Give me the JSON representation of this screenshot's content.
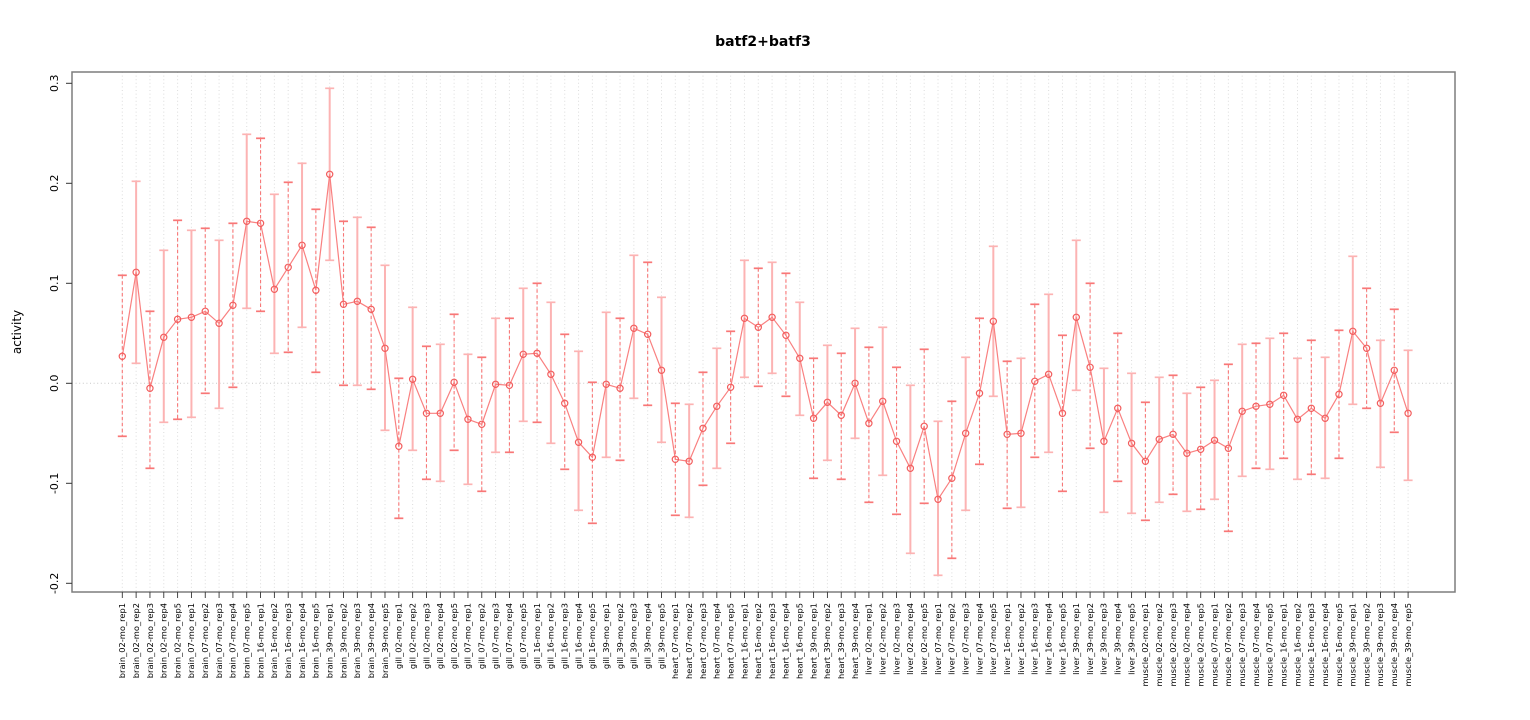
{
  "page": {
    "title": "batf2+batf3"
  },
  "chart_data": {
    "type": "line",
    "subtype": "points-with-error-bars",
    "title": "batf2+batf3",
    "xlabel": "",
    "ylabel": "activity",
    "ylim": [
      -0.209,
      0.311
    ],
    "yticks": {
      "values": [
        0.3,
        0.2,
        0.1,
        0.0,
        -0.1,
        -0.2
      ],
      "labels": [
        "0.3",
        "0.2",
        "0.1",
        "0.0",
        "-0.1",
        "-0.2"
      ]
    },
    "grid": "vertical dotted line at every category; dotted horizontal line at y=0",
    "legend": "none",
    "categories": [
      "brain_02-mo_rep1",
      "brain_02-mo_rep2",
      "brain_02-mo_rep3",
      "brain_02-mo_rep4",
      "brain_02-mo_rep5",
      "brain_07-mo_rep1",
      "brain_07-mo_rep2",
      "brain_07-mo_rep3",
      "brain_07-mo_rep4",
      "brain_07-mo_rep5",
      "brain_16-mo_rep1",
      "brain_16-mo_rep2",
      "brain_16-mo_rep3",
      "brain_16-mo_rep4",
      "brain_16-mo_rep5",
      "brain_39-mo_rep1",
      "brain_39-mo_rep2",
      "brain_39-mo_rep3",
      "brain_39-mo_rep4",
      "brain_39-mo_rep5",
      "gill_02-mo_rep1",
      "gill_02-mo_rep2",
      "gill_02-mo_rep3",
      "gill_02-mo_rep4",
      "gill_02-mo_rep5",
      "gill_07-mo_rep1",
      "gill_07-mo_rep2",
      "gill_07-mo_rep3",
      "gill_07-mo_rep4",
      "gill_07-mo_rep5",
      "gill_16-mo_rep1",
      "gill_16-mo_rep2",
      "gill_16-mo_rep3",
      "gill_16-mo_rep4",
      "gill_16-mo_rep5",
      "gill_39-mo_rep1",
      "gill_39-mo_rep2",
      "gill_39-mo_rep3",
      "gill_39-mo_rep4",
      "gill_39-mo_rep5",
      "heart_07-mo_rep1",
      "heart_07-mo_rep2",
      "heart_07-mo_rep3",
      "heart_07-mo_rep4",
      "heart_07-mo_rep5",
      "heart_16-mo_rep1",
      "heart_16-mo_rep2",
      "heart_16-mo_rep3",
      "heart_16-mo_rep4",
      "heart_16-mo_rep5",
      "heart_39-mo_rep1",
      "heart_39-mo_rep2",
      "heart_39-mo_rep3",
      "heart_39-mo_rep4",
      "liver_02-mo_rep1",
      "liver_02-mo_rep2",
      "liver_02-mo_rep3",
      "liver_02-mo_rep4",
      "liver_02-mo_rep5",
      "liver_07-mo_rep1",
      "liver_07-mo_rep2",
      "liver_07-mo_rep3",
      "liver_07-mo_rep4",
      "liver_07-mo_rep5",
      "liver_16-mo_rep1",
      "liver_16-mo_rep2",
      "liver_16-mo_rep3",
      "liver_16-mo_rep4",
      "liver_16-mo_rep5",
      "liver_39-mo_rep1",
      "liver_39-mo_rep2",
      "liver_39-mo_rep3",
      "liver_39-mo_rep4",
      "liver_39-mo_rep5",
      "muscle_02-mo_rep1",
      "muscle_02-mo_rep2",
      "muscle_02-mo_rep3",
      "muscle_02-mo_rep4",
      "muscle_02-mo_rep5",
      "muscle_07-mo_rep1",
      "muscle_07-mo_rep2",
      "muscle_07-mo_rep3",
      "muscle_07-mo_rep4",
      "muscle_07-mo_rep5",
      "muscle_16-mo_rep1",
      "muscle_16-mo_rep2",
      "muscle_16-mo_rep3",
      "muscle_16-mo_rep4",
      "muscle_16-mo_rep5",
      "muscle_39-mo_rep1",
      "muscle_39-mo_rep2",
      "muscle_39-mo_rep3",
      "muscle_39-mo_rep4",
      "muscle_39-mo_rep5"
    ],
    "series": [
      {
        "name": "activity",
        "values": [
          0.027,
          0.111,
          -0.005,
          0.046,
          0.064,
          0.066,
          0.072,
          0.06,
          0.078,
          0.162,
          0.16,
          0.094,
          0.116,
          0.138,
          0.093,
          0.209,
          0.079,
          0.082,
          0.074,
          0.035,
          -0.063,
          0.004,
          -0.03,
          -0.03,
          0.001,
          -0.036,
          -0.041,
          -0.001,
          -0.002,
          0.029,
          0.03,
          0.009,
          -0.02,
          -0.059,
          -0.074,
          -0.001,
          -0.005,
          0.055,
          0.049,
          0.013,
          -0.076,
          -0.078,
          -0.045,
          -0.023,
          -0.004,
          0.065,
          0.056,
          0.066,
          0.048,
          0.025,
          -0.035,
          -0.019,
          -0.032,
          0.0,
          -0.04,
          -0.018,
          -0.058,
          -0.085,
          -0.043,
          -0.116,
          -0.095,
          -0.05,
          -0.01,
          0.062,
          -0.051,
          -0.05,
          0.002,
          0.009,
          -0.03,
          0.066,
          0.016,
          -0.058,
          -0.025,
          -0.06,
          -0.078,
          -0.056,
          -0.051,
          -0.07,
          -0.066,
          -0.057,
          -0.065,
          -0.028,
          -0.023,
          -0.021,
          -0.012,
          -0.036,
          -0.025,
          -0.035,
          -0.011,
          0.052,
          0.035,
          -0.02,
          0.013,
          -0.03
        ],
        "err_lo": [
          -0.053,
          0.02,
          -0.085,
          -0.039,
          -0.036,
          -0.034,
          -0.01,
          -0.025,
          -0.004,
          0.075,
          0.072,
          0.03,
          0.031,
          0.056,
          0.011,
          0.123,
          -0.002,
          -0.002,
          -0.006,
          -0.047,
          -0.135,
          -0.067,
          -0.096,
          -0.098,
          -0.067,
          -0.101,
          -0.108,
          -0.069,
          -0.069,
          -0.038,
          -0.039,
          -0.06,
          -0.086,
          -0.127,
          -0.14,
          -0.074,
          -0.077,
          -0.015,
          -0.022,
          -0.059,
          -0.132,
          -0.134,
          -0.102,
          -0.085,
          -0.06,
          0.006,
          -0.003,
          0.01,
          -0.013,
          -0.032,
          -0.095,
          -0.077,
          -0.096,
          -0.055,
          -0.119,
          -0.092,
          -0.131,
          -0.17,
          -0.12,
          -0.192,
          -0.175,
          -0.127,
          -0.081,
          -0.013,
          -0.125,
          -0.124,
          -0.074,
          -0.069,
          -0.108,
          -0.007,
          -0.065,
          -0.129,
          -0.098,
          -0.13,
          -0.137,
          -0.119,
          -0.111,
          -0.128,
          -0.126,
          -0.116,
          -0.148,
          -0.093,
          -0.085,
          -0.086,
          -0.075,
          -0.096,
          -0.091,
          -0.095,
          -0.075,
          -0.021,
          -0.025,
          -0.084,
          -0.049,
          -0.097
        ],
        "err_hi": [
          0.108,
          0.202,
          0.072,
          0.133,
          0.163,
          0.153,
          0.155,
          0.143,
          0.16,
          0.249,
          0.245,
          0.189,
          0.201,
          0.22,
          0.174,
          0.295,
          0.162,
          0.166,
          0.156,
          0.118,
          0.005,
          0.076,
          0.037,
          0.039,
          0.069,
          0.029,
          0.026,
          0.065,
          0.065,
          0.095,
          0.1,
          0.081,
          0.049,
          0.032,
          0.001,
          0.071,
          0.065,
          0.128,
          0.121,
          0.086,
          -0.02,
          -0.021,
          0.011,
          0.035,
          0.052,
          0.123,
          0.115,
          0.121,
          0.11,
          0.081,
          0.025,
          0.038,
          0.03,
          0.055,
          0.036,
          0.056,
          0.016,
          -0.002,
          0.034,
          -0.038,
          -0.018,
          0.026,
          0.065,
          0.137,
          0.022,
          0.025,
          0.079,
          0.089,
          0.048,
          0.143,
          0.1,
          0.015,
          0.05,
          0.01,
          -0.019,
          0.006,
          0.008,
          -0.01,
          -0.004,
          0.003,
          0.019,
          0.039,
          0.04,
          0.045,
          0.05,
          0.025,
          0.043,
          0.026,
          0.053,
          0.127,
          0.095,
          0.043,
          0.074,
          0.033
        ]
      }
    ],
    "colors": {
      "point": "#f25c5c",
      "line": "#f98080",
      "error_bar": "#f87777",
      "error_bar_light": "#fcb3b3",
      "grid": "#dcdcdc",
      "zero_line": "#c9c9c9",
      "box": "#7d7d7d",
      "tick": "#333333",
      "text": "#000000"
    }
  }
}
